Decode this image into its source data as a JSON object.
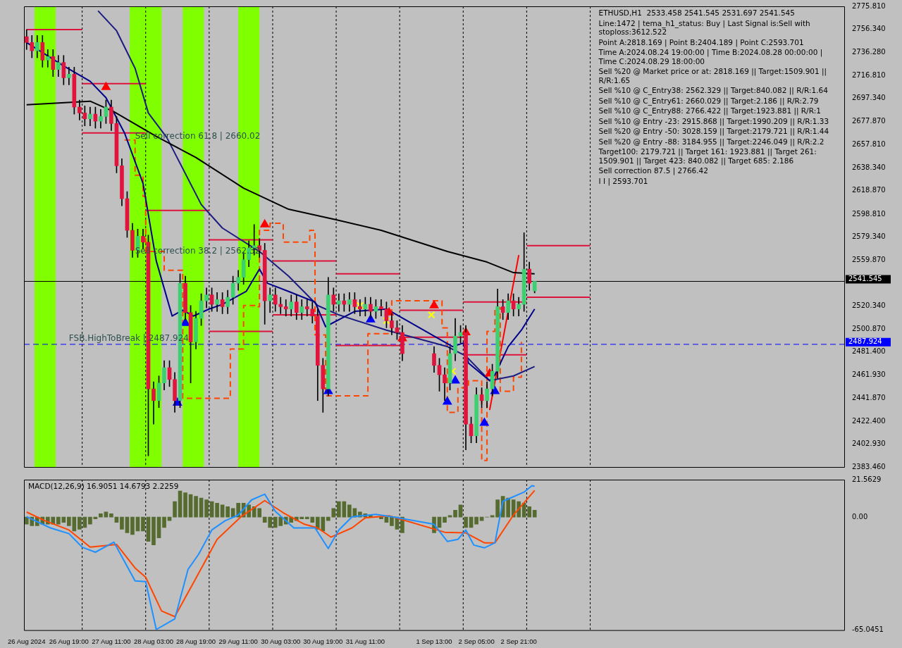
{
  "chart_data": [
    {
      "type": "candlestick",
      "title": "ETHUSD,H1  2533.458 2541.545 2531.697 2541.545",
      "legend": false,
      "grid": false,
      "tick_labels": "y",
      "xlim": [
        "2024-08-26T02:00",
        "2024-09-08T00:00"
      ],
      "ylim": [
        2383.46,
        2775.81
      ],
      "yticks": [
        {
          "value": 2383.46,
          "label": "2383.460"
        },
        {
          "value": 2402.93,
          "label": "2402.930"
        },
        {
          "value": 2422.4,
          "label": "2422.400"
        },
        {
          "value": 2441.87,
          "label": "2441.870"
        },
        {
          "value": 2461.93,
          "label": "2461.930"
        },
        {
          "value": 2481.4,
          "label": "2481.400"
        },
        {
          "value": 2500.87,
          "label": "2500.870"
        },
        {
          "value": 2520.34,
          "label": "2520.340"
        },
        {
          "value": 2559.87,
          "label": "2559.870"
        },
        {
          "value": 2579.34,
          "label": "2579.340"
        },
        {
          "value": 2598.81,
          "label": "2598.810"
        },
        {
          "value": 2618.87,
          "label": "2618.870"
        },
        {
          "value": 2638.34,
          "label": "2638.340"
        },
        {
          "value": 2657.81,
          "label": "2657.810"
        },
        {
          "value": 2677.87,
          "label": "2677.870"
        },
        {
          "value": 2697.34,
          "label": "2697.340"
        },
        {
          "value": 2716.81,
          "label": "2716.810"
        },
        {
          "value": 2736.28,
          "label": "2736.280"
        },
        {
          "value": 2756.34,
          "label": "2756.340"
        },
        {
          "value": 2775.81,
          "label": "2775.810"
        }
      ],
      "x": [
        "2024-08-26T03:00",
        "2024-08-26T05:00",
        "2024-08-26T07:00",
        "2024-08-26T09:00",
        "2024-08-26T11:00",
        "2024-08-26T13:00",
        "2024-08-26T15:00",
        "2024-08-26T17:00",
        "2024-08-26T19:00",
        "2024-08-26T21:00",
        "2024-08-26T23:00",
        "2024-08-27T01:00",
        "2024-08-27T03:00",
        "2024-08-27T05:00",
        "2024-08-27T07:00",
        "2024-08-27T09:00",
        "2024-08-27T11:00",
        "2024-08-27T13:00",
        "2024-08-27T15:00",
        "2024-08-27T17:00",
        "2024-08-27T19:00",
        "2024-08-27T21:00",
        "2024-08-27T23:00",
        "2024-08-28T01:00",
        "2024-08-28T03:00",
        "2024-08-28T05:00",
        "2024-08-28T07:00",
        "2024-08-28T09:00",
        "2024-08-28T11:00",
        "2024-08-28T13:00",
        "2024-08-28T15:00",
        "2024-08-28T17:00",
        "2024-08-28T19:00",
        "2024-08-28T21:00",
        "2024-08-28T23:00",
        "2024-08-29T01:00",
        "2024-08-29T03:00",
        "2024-08-29T05:00",
        "2024-08-29T07:00",
        "2024-08-29T09:00",
        "2024-08-29T11:00",
        "2024-08-29T13:00",
        "2024-08-29T15:00",
        "2024-08-29T17:00",
        "2024-08-29T19:00",
        "2024-08-29T21:00",
        "2024-08-29T23:00",
        "2024-08-30T01:00",
        "2024-08-30T03:00",
        "2024-08-30T05:00",
        "2024-08-30T07:00",
        "2024-08-30T09:00",
        "2024-08-30T11:00",
        "2024-08-30T13:00",
        "2024-08-30T15:00",
        "2024-08-30T17:00",
        "2024-08-30T19:00",
        "2024-08-30T21:00",
        "2024-08-30T23:00",
        "2024-08-31T01:00",
        "2024-08-31T03:00",
        "2024-08-31T05:00",
        "2024-08-31T07:00",
        "2024-08-31T09:00",
        "2024-08-31T11:00",
        "2024-08-31T13:00",
        "2024-08-31T15:00",
        "2024-08-31T17:00",
        "2024-08-31T19:00",
        "2024-08-31T21:00",
        "2024-08-31T23:00",
        "2024-09-01T01:00",
        "2024-09-01T13:00",
        "2024-09-01T15:00",
        "2024-09-01T17:00",
        "2024-09-01T19:00",
        "2024-09-01T21:00",
        "2024-09-01T23:00",
        "2024-09-02T01:00",
        "2024-09-02T03:00",
        "2024-09-02T05:00",
        "2024-09-02T07:00",
        "2024-09-02T09:00",
        "2024-09-02T11:00",
        "2024-09-02T13:00",
        "2024-09-02T15:00",
        "2024-09-02T17:00",
        "2024-09-02T19:00",
        "2024-09-02T21:00",
        "2024-09-02T23:00",
        "2024-09-03T01:00",
        "2024-09-03T03:00"
      ],
      "ohlc": [
        [
          2750,
          2756,
          2739,
          2745
        ],
        [
          2745,
          2751,
          2732,
          2738
        ],
        [
          2738,
          2751,
          2732,
          2745
        ],
        [
          2745,
          2751,
          2724,
          2730
        ],
        [
          2730,
          2739,
          2724,
          2733
        ],
        [
          2733,
          2739,
          2716,
          2722
        ],
        [
          2722,
          2734,
          2716,
          2728
        ],
        [
          2728,
          2734,
          2709,
          2715
        ],
        [
          2715,
          2724,
          2709,
          2718
        ],
        [
          2718,
          2724,
          2684,
          2690
        ],
        [
          2690,
          2696,
          2679,
          2685
        ],
        [
          2685,
          2691,
          2674,
          2680
        ],
        [
          2680,
          2690,
          2674,
          2684
        ],
        [
          2684,
          2690,
          2672,
          2678
        ],
        [
          2678,
          2688,
          2672,
          2682
        ],
        [
          2682,
          2696,
          2676,
          2690
        ],
        [
          2690,
          2696,
          2670,
          2676
        ],
        [
          2676,
          2682,
          2634,
          2640
        ],
        [
          2640,
          2646,
          2606,
          2612
        ],
        [
          2612,
          2618,
          2579,
          2585
        ],
        [
          2585,
          2591,
          2562,
          2568
        ],
        [
          2568,
          2586,
          2562,
          2580
        ],
        [
          2580,
          2586,
          2569,
          2575
        ],
        [
          2575,
          2581,
          2393,
          2450
        ],
        [
          2450,
          2456,
          2420,
          2440
        ],
        [
          2440,
          2461,
          2434,
          2455
        ],
        [
          2455,
          2474,
          2449,
          2468
        ],
        [
          2468,
          2474,
          2452,
          2458
        ],
        [
          2458,
          2464,
          2430,
          2440
        ],
        [
          2440,
          2548,
          2434,
          2540
        ],
        [
          2540,
          2546,
          2509,
          2515
        ],
        [
          2515,
          2521,
          2455,
          2490
        ],
        [
          2490,
          2516,
          2484,
          2510
        ],
        [
          2510,
          2531,
          2504,
          2525
        ],
        [
          2525,
          2536,
          2519,
          2530
        ],
        [
          2530,
          2536,
          2516,
          2522
        ],
        [
          2522,
          2532,
          2516,
          2526
        ],
        [
          2526,
          2532,
          2514,
          2520
        ],
        [
          2520,
          2534,
          2514,
          2528
        ],
        [
          2528,
          2546,
          2522,
          2540
        ],
        [
          2540,
          2551,
          2534,
          2545
        ],
        [
          2545,
          2566,
          2539,
          2560
        ],
        [
          2560,
          2576,
          2554,
          2570
        ],
        [
          2570,
          2590,
          2564,
          2572
        ],
        [
          2572,
          2578,
          2562,
          2568
        ],
        [
          2568,
          2574,
          2505,
          2525
        ],
        [
          2525,
          2536,
          2515,
          2530
        ],
        [
          2530,
          2536,
          2516,
          2522
        ],
        [
          2522,
          2528,
          2514,
          2520
        ],
        [
          2520,
          2526,
          2512,
          2518
        ],
        [
          2518,
          2530,
          2512,
          2524
        ],
        [
          2524,
          2530,
          2509,
          2515
        ],
        [
          2515,
          2526,
          2509,
          2520
        ],
        [
          2520,
          2526,
          2512,
          2518
        ],
        [
          2518,
          2524,
          2506,
          2512
        ],
        [
          2512,
          2518,
          2440,
          2470
        ],
        [
          2470,
          2476,
          2430,
          2450
        ],
        [
          2450,
          2545,
          2444,
          2530
        ],
        [
          2530,
          2536,
          2516,
          2522
        ],
        [
          2522,
          2531,
          2516,
          2525
        ],
        [
          2525,
          2531,
          2516,
          2522
        ],
        [
          2522,
          2532,
          2516,
          2526
        ],
        [
          2526,
          2532,
          2514,
          2520
        ],
        [
          2520,
          2526,
          2512,
          2518
        ],
        [
          2518,
          2528,
          2512,
          2522
        ],
        [
          2522,
          2528,
          2510,
          2516
        ],
        [
          2516,
          2526,
          2510,
          2520
        ],
        [
          2520,
          2526,
          2512,
          2518
        ],
        [
          2518,
          2524,
          2502,
          2508
        ],
        [
          2508,
          2514,
          2496,
          2502
        ],
        [
          2502,
          2508,
          2492,
          2498
        ],
        [
          2498,
          2504,
          2474,
          2480
        ],
        [
          2480,
          2486,
          2464,
          2470
        ],
        [
          2470,
          2476,
          2448,
          2462
        ],
        [
          2462,
          2468,
          2440,
          2455
        ],
        [
          2455,
          2486,
          2449,
          2480
        ],
        [
          2480,
          2510,
          2474,
          2495
        ],
        [
          2495,
          2504,
          2489,
          2498
        ],
        [
          2498,
          2504,
          2398,
          2420
        ],
        [
          2420,
          2426,
          2404,
          2410
        ],
        [
          2410,
          2451,
          2404,
          2445
        ],
        [
          2445,
          2451,
          2434,
          2440
        ],
        [
          2440,
          2456,
          2434,
          2450
        ],
        [
          2450,
          2471,
          2444,
          2465
        ],
        [
          2465,
          2535,
          2459,
          2520
        ],
        [
          2520,
          2526,
          2509,
          2515
        ],
        [
          2515,
          2531,
          2509,
          2525
        ],
        [
          2525,
          2531,
          2512,
          2518
        ],
        [
          2518,
          2528,
          2512,
          2522
        ],
        [
          2522,
          2583,
          2516,
          2552
        ],
        [
          2552,
          2558,
          2534,
          2540
        ],
        [
          2533.458,
          2541.545,
          2531.697,
          2541.545
        ]
      ],
      "colors": [
        "#e0143c",
        "#e0143c",
        "#3cd070",
        "#e0143c",
        "#3cd070",
        "#e0143c",
        "#3cd070",
        "#e0143c",
        "#3cd070",
        "#e0143c",
        "#e0143c",
        "#e0143c",
        "#3cd070",
        "#e0143c",
        "#3cd070",
        "#3cd070",
        "#e0143c",
        "#e0143c",
        "#e0143c",
        "#e0143c",
        "#e0143c",
        "#3cd070",
        "#e0143c",
        "#e0143c",
        "#e0143c",
        "#3cd070",
        "#3cd070",
        "#e0143c",
        "#e0143c",
        "#3cd070",
        "#e0143c",
        "#e0143c",
        "#3cd070",
        "#3cd070",
        "#3cd070",
        "#e0143c",
        "#3cd070",
        "#e0143c",
        "#3cd070",
        "#3cd070",
        "#3cd070",
        "#3cd070",
        "#3cd070",
        "#3cd070",
        "#e0143c",
        "#e0143c",
        "#3cd070",
        "#e0143c",
        "#e0143c",
        "#e0143c",
        "#3cd070",
        "#e0143c",
        "#3cd070",
        "#e0143c",
        "#e0143c",
        "#e0143c",
        "#e0143c",
        "#3cd070",
        "#e0143c",
        "#3cd070",
        "#e0143c",
        "#3cd070",
        "#e0143c",
        "#e0143c",
        "#3cd070",
        "#e0143c",
        "#3cd070",
        "#e0143c",
        "#e0143c",
        "#e0143c",
        "#e0143c",
        "#e0143c",
        "#e0143c",
        "#e0143c",
        "#e0143c",
        "#3cd070",
        "#3cd070",
        "#3cd070",
        "#e0143c",
        "#e0143c",
        "#3cd070",
        "#e0143c",
        "#3cd070",
        "#3cd070",
        "#3cd070",
        "#e0143c",
        "#3cd070",
        "#e0143c",
        "#3cd070",
        "#3cd070",
        "#e0143c",
        "#3cd070"
      ],
      "series": [
        {
          "type": "line",
          "color": "#000000",
          "x": [
            "2024-08-26T03:00",
            "2024-08-27T03:00",
            "2024-08-27T12:00",
            "2024-08-28T04:00",
            "2024-08-28T19:00",
            "2024-08-29T13:00",
            "2024-08-30T06:00",
            "2024-08-31T00:00",
            "2024-08-31T17:00",
            "2024-09-01T18:00",
            "2024-09-02T09:00",
            "2024-09-02T19:00",
            "2024-09-03T03:00"
          ],
          "values": [
            2692,
            2695,
            2686,
            2665,
            2647,
            2621,
            2603,
            2594,
            2585,
            2567,
            2558,
            2549,
            2548
          ]
        },
        {
          "type": "line",
          "color": "#00008b",
          "x": [
            "2024-08-26T03:00",
            "2024-08-26T17:00",
            "2024-08-27T03:00",
            "2024-08-27T09:00",
            "2024-08-27T16:00",
            "2024-08-27T23:00",
            "2024-08-28T04:00",
            "2024-08-28T10:00",
            "2024-08-28T14:00",
            "2024-08-28T18:00",
            "2024-08-29T00:00",
            "2024-08-29T05:00",
            "2024-08-29T14:00",
            "2024-08-29T19:00",
            "2024-08-29T22:00",
            "2024-08-30T06:00",
            "2024-08-30T16:00",
            "2024-08-30T20:00",
            "2024-08-31T07:00",
            "2024-08-31T19:00",
            "2024-09-01T20:00",
            "2024-09-02T00:00",
            "2024-09-02T02:00",
            "2024-09-02T10:00",
            "2024-09-02T12:00",
            "2024-09-02T17:00",
            "2024-09-02T22:00",
            "2024-09-03T03:00"
          ],
          "values": [
            2745,
            2725,
            2712,
            2698,
            2668,
            2625,
            2559,
            2512,
            2517,
            2512,
            2518,
            2522,
            2533,
            2552,
            2540,
            2533,
            2524,
            2503,
            2516,
            2518,
            2486,
            2489,
            2472,
            2457,
            2462,
            2486,
            2500,
            2518
          ]
        },
        {
          "type": "line",
          "color": "#1c1c80",
          "x": [
            "2024-08-27T06:00",
            "2024-08-27T13:00",
            "2024-08-27T20:00",
            "2024-08-28T01:00",
            "2024-08-28T08:00",
            "2024-08-28T21:00",
            "2024-08-29T05:00",
            "2024-08-29T19:00",
            "2024-08-30T06:00",
            "2024-08-30T17:00",
            "2024-08-31T01:00",
            "2024-08-31T19:00",
            "2024-09-01T18:00",
            "2024-09-02T01:00",
            "2024-09-02T10:00",
            "2024-09-02T19:00",
            "2024-09-03T03:00"
          ],
          "values": [
            2772,
            2755,
            2723,
            2685,
            2664,
            2607,
            2587,
            2567,
            2546,
            2521,
            2513,
            2500,
            2486,
            2478,
            2457,
            2461,
            2469
          ]
        },
        {
          "type": "step",
          "color": "#ff4500",
          "line_style": "dashed",
          "x": [
            "2024-08-27T16:00",
            "2024-08-27T20:00",
            "2024-08-27T23:00",
            "2024-08-28T00:00",
            "2024-08-28T07:00",
            "2024-08-28T13:00",
            "2024-08-28T14:00",
            "2024-08-29T05:00",
            "2024-08-29T08:00",
            "2024-08-29T13:00",
            "2024-08-29T18:00",
            "2024-08-29T19:00",
            "2024-08-29T23:00",
            "2024-08-30T04:00",
            "2024-08-30T09:00",
            "2024-08-30T14:00",
            "2024-08-30T16:00",
            "2024-08-30T20:00",
            "2024-08-31T05:00",
            "2024-08-31T12:00",
            "2024-08-31T20:00",
            "2024-08-31T21:00",
            "2024-09-01T01:00",
            "2024-09-01T16:00",
            "2024-09-01T18:00",
            "2024-09-01T22:00",
            "2024-09-02T02:00",
            "2024-09-02T07:00",
            "2024-09-02T09:00",
            "2024-09-02T12:00",
            "2024-09-02T14:00",
            "2024-09-02T19:00",
            "2024-09-02T22:00"
          ],
          "values": [
            2662,
            2632,
            2614,
            2567,
            2551,
            2551,
            2442,
            2442,
            2484,
            2521,
            2520,
            2585,
            2591,
            2575,
            2575,
            2585,
            2496,
            2444,
            2444,
            2497,
            2498,
            2525,
            2525,
            2502,
            2430,
            2451,
            2457,
            2389,
            2499,
            2519,
            2448,
            2460,
            2490
          ]
        },
        {
          "type": "line",
          "color": "#dc143c",
          "x": [
            "2024-08-26T03:00",
            "2024-08-27T00:00"
          ],
          "values": [
            2756,
            2756
          ]
        },
        {
          "type": "line",
          "color": "#dc143c",
          "x": [
            "2024-08-27T00:00",
            "2024-08-28T00:00"
          ],
          "values": [
            2668,
            2668
          ]
        },
        {
          "type": "line",
          "color": "#dc143c",
          "x": [
            "2024-08-27T00:00",
            "2024-08-28T00:00"
          ],
          "values": [
            2710,
            2710
          ]
        },
        {
          "type": "line",
          "color": "#dc143c",
          "x": [
            "2024-08-28T00:00",
            "2024-08-29T00:00"
          ],
          "values": [
            2602,
            2602
          ]
        },
        {
          "type": "line",
          "color": "#dc143c",
          "x": [
            "2024-08-29T00:00",
            "2024-08-30T00:00"
          ],
          "values": [
            2577,
            2577
          ]
        },
        {
          "type": "line",
          "color": "#dc143c",
          "x": [
            "2024-08-29T00:00",
            "2024-08-30T00:00"
          ],
          "values": [
            2499,
            2499
          ]
        },
        {
          "type": "line",
          "color": "#dc143c",
          "x": [
            "2024-08-30T00:00",
            "2024-08-31T00:00"
          ],
          "values": [
            2559,
            2559
          ]
        },
        {
          "type": "line",
          "color": "#dc143c",
          "x": [
            "2024-08-30T00:00",
            "2024-08-31T00:00"
          ],
          "values": [
            2513,
            2513
          ]
        },
        {
          "type": "line",
          "color": "#dc143c",
          "x": [
            "2024-08-31T00:00",
            "2024-09-01T00:00"
          ],
          "values": [
            2548,
            2548
          ]
        },
        {
          "type": "line",
          "color": "#dc143c",
          "x": [
            "2024-08-31T00:00",
            "2024-09-01T00:00"
          ],
          "values": [
            2487,
            2487
          ]
        },
        {
          "type": "line",
          "color": "#dc143c",
          "x": [
            "2024-09-01T00:00",
            "2024-09-02T00:00"
          ],
          "values": [
            2517,
            2517
          ]
        },
        {
          "type": "line",
          "color": "#dc143c",
          "x": [
            "2024-09-01T00:00",
            "2024-09-02T00:00"
          ],
          "values": [
            2494,
            2494
          ]
        },
        {
          "type": "line",
          "color": "#dc143c",
          "x": [
            "2024-09-02T00:00",
            "2024-09-03T00:00"
          ],
          "values": [
            2524,
            2524
          ]
        },
        {
          "type": "line",
          "color": "#dc143c",
          "x": [
            "2024-09-02T00:00",
            "2024-09-03T00:00"
          ],
          "values": [
            2479,
            2479
          ]
        },
        {
          "type": "line",
          "color": "#dc143c",
          "x": [
            "2024-09-03T00:00",
            "2024-09-04T00:00"
          ],
          "values": [
            2572,
            2572
          ]
        },
        {
          "type": "line",
          "color": "#dc143c",
          "x": [
            "2024-09-03T00:00",
            "2024-09-04T00:00"
          ],
          "values": [
            2528,
            2528
          ]
        },
        {
          "type": "line",
          "color": "#ff0000",
          "x": [
            "2024-09-02T10:00",
            "2024-09-02T21:00"
          ],
          "values": [
            2432,
            2564
          ]
        },
        {
          "type": "scatter",
          "marker": "triangle",
          "color": "#0000ff",
          "x": [
            "2024-08-28T12:00",
            "2024-08-28T15:00",
            "2024-08-30T21:00",
            "2024-08-31T13:00",
            "2024-09-01T18:00",
            "2024-09-01T21:00",
            "2024-09-02T08:00",
            "2024-09-02T12:00"
          ],
          "values": [
            2438,
            2506,
            2448,
            2509,
            2439,
            2457,
            2421,
            2448
          ]
        },
        {
          "type": "scatter",
          "marker": "triangle",
          "color": "#ff0000",
          "x": [
            "2024-08-27T09:00",
            "2024-08-29T21:00",
            "2024-08-31T20:00",
            "2024-09-01T01:00",
            "2024-09-01T13:00",
            "2024-09-02T01:00",
            "2024-09-02T10:00"
          ],
          "values": [
            2707,
            2590,
            2515,
            2493,
            2521,
            2498,
            2463
          ]
        },
        {
          "type": "scatter",
          "marker": "cross",
          "color": "#ffff00",
          "x": [
            "2024-08-31T09:00",
            "2024-08-31T19:00",
            "2024-09-01T12:00",
            "2024-09-01T20:00"
          ],
          "values": [
            2521,
            2508,
            2513,
            2465
          ]
        }
      ],
      "bands": [
        {
          "axis": "x",
          "from": "2024-08-26T06:00",
          "to": "2024-08-26T14:00",
          "color": "#7fff00"
        },
        {
          "axis": "x",
          "from": "2024-08-27T18:00",
          "to": "2024-08-28T06:00",
          "color": "#7fff00"
        },
        {
          "axis": "x",
          "from": "2024-08-28T14:00",
          "to": "2024-08-28T22:00",
          "color": "#7fff00"
        },
        {
          "axis": "x",
          "from": "2024-08-29T11:00",
          "to": "2024-08-29T19:00",
          "color": "#7fff00"
        }
      ],
      "ref_lines": [
        {
          "axis": "y",
          "value": 2541.545,
          "label": "2541.545",
          "color": "#000000"
        },
        {
          "axis": "y",
          "value": 2487.924,
          "label": "2487.924",
          "color": "#0000ff",
          "line_style": "dashed"
        },
        {
          "axis": "x",
          "value": "2024-08-27T00:00",
          "color": "#000000",
          "line_style": "dotted"
        },
        {
          "axis": "x",
          "value": "2024-08-28T00:00",
          "color": "#000000",
          "line_style": "dotted"
        },
        {
          "axis": "x",
          "value": "2024-08-29T00:00",
          "color": "#000000",
          "line_style": "dotted"
        },
        {
          "axis": "x",
          "value": "2024-08-30T00:00",
          "color": "#000000",
          "line_style": "dotted"
        },
        {
          "axis": "x",
          "value": "2024-08-31T00:00",
          "color": "#000000",
          "line_style": "dotted"
        },
        {
          "axis": "x",
          "value": "2024-09-01T00:00",
          "color": "#000000",
          "line_style": "dotted"
        },
        {
          "axis": "x",
          "value": "2024-09-02T00:00",
          "color": "#000000",
          "line_style": "dotted"
        },
        {
          "axis": "x",
          "value": "2024-09-03T00:00",
          "color": "#000000",
          "line_style": "dotted"
        },
        {
          "axis": "x",
          "value": "2024-09-04T00:00",
          "color": "#000000",
          "line_style": "dotted"
        }
      ],
      "annotations": [
        "Line:1472 | tema_h1_status: Buy | Last Signal is:Sell with stoploss:3612.522",
        "Point A:2818.169 | Point B:2404.189 | Point C:2593.701",
        "Time A:2024.08.24 19:00:00 | Time B:2024.08.28 00:00:00 | Time C:2024.08.29 18:00:00",
        "Sell %20 @ Market price or at: 2818.169 || Target:1509.901 || R/R:1.65",
        "Sell %10 @ C_Entry38: 2562.329 || Target:840.082 || R/R:1.64",
        "Sell %10 @ C_Entry61: 2660.029 || Target:2.186 || R/R:2.79",
        "Sell %10 @ C_Entry88: 2766.422 || Target:1923.881 || R/R:1",
        "Sell %10 @ Entry -23: 2915.868 || Target:1990.209 || R/R:1.33",
        "Sell %20 @ Entry -50: 3028.159 || Target:2179.721 || R/R:1.44",
        "Sell %20 @ Entry -88: 3184.955 || Target:2246.049 || R/R:2.2",
        "Target100: 2179.721 || Target 161: 1923.881 || Target 261: 1509.901 || Target 423: 840.082 || Target 685: 2.186",
        "Sell correction 87.5 | 2766.42",
        "I I | 2593.701",
        {
          "text": "Sell correction 61.8 | 2660.02",
          "x": "2024-08-27T20:00",
          "y": 2660.02
        },
        {
          "text": "Sell correction 38.2 | 2562.32",
          "x": "2024-08-27T20:00",
          "y": 2562.32
        },
        {
          "text": "FSB.HighToBreak | 2487.924",
          "x": "2024-08-26T19:00",
          "y": 2487.924
        }
      ]
    },
    {
      "type": "bar",
      "title": "MACD(12,26,9) 16.9051 14.6793 2.2259",
      "legend": false,
      "grid": false,
      "xlim": [
        "2024-08-26T02:00",
        "2024-09-08T00:00"
      ],
      "ylim": [
        -65.0451,
        21.5629
      ],
      "yticks": [
        {
          "value": -65.0451,
          "label": "-65.0451"
        },
        {
          "value": 0,
          "label": "0.00"
        },
        {
          "value": 21.5629,
          "label": "21.5629"
        }
      ],
      "xticks": [
        {
          "value": "2024-08-26T03:00",
          "label": "26 Aug 2024"
        },
        {
          "value": "2024-08-26T19:00",
          "label": "26 Aug 19:00"
        },
        {
          "value": "2024-08-27T11:00",
          "label": "27 Aug 11:00"
        },
        {
          "value": "2024-08-28T03:00",
          "label": "28 Aug 03:00"
        },
        {
          "value": "2024-08-28T19:00",
          "label": "28 Aug 19:00"
        },
        {
          "value": "2024-08-29T11:00",
          "label": "29 Aug 11:00"
        },
        {
          "value": "2024-08-30T03:00",
          "label": "30 Aug 03:00"
        },
        {
          "value": "2024-08-30T19:00",
          "label": "30 Aug 19:00"
        },
        {
          "value": "2024-08-31T11:00",
          "label": "31 Aug 11:00"
        },
        {
          "value": "2024-09-01T13:00",
          "label": "1 Sep 13:00"
        },
        {
          "value": "2024-09-02T05:00",
          "label": "2 Sep 05:00"
        },
        {
          "value": "2024-09-02T21:00",
          "label": "2 Sep 21:00"
        }
      ],
      "x": [
        "2024-08-26T03:00",
        "2024-08-26T05:00",
        "2024-08-26T07:00",
        "2024-08-26T09:00",
        "2024-08-26T11:00",
        "2024-08-26T13:00",
        "2024-08-26T15:00",
        "2024-08-26T17:00",
        "2024-08-26T19:00",
        "2024-08-26T21:00",
        "2024-08-26T23:00",
        "2024-08-27T01:00",
        "2024-08-27T03:00",
        "2024-08-27T05:00",
        "2024-08-27T07:00",
        "2024-08-27T09:00",
        "2024-08-27T11:00",
        "2024-08-27T13:00",
        "2024-08-27T15:00",
        "2024-08-27T17:00",
        "2024-08-27T19:00",
        "2024-08-27T21:00",
        "2024-08-27T23:00",
        "2024-08-28T01:00",
        "2024-08-28T03:00",
        "2024-08-28T05:00",
        "2024-08-28T07:00",
        "2024-08-28T09:00",
        "2024-08-28T11:00",
        "2024-08-28T13:00",
        "2024-08-28T15:00",
        "2024-08-28T17:00",
        "2024-08-28T19:00",
        "2024-08-28T21:00",
        "2024-08-28T23:00",
        "2024-08-29T01:00",
        "2024-08-29T03:00",
        "2024-08-29T05:00",
        "2024-08-29T07:00",
        "2024-08-29T09:00",
        "2024-08-29T11:00",
        "2024-08-29T13:00",
        "2024-08-29T15:00",
        "2024-08-29T17:00",
        "2024-08-29T19:00",
        "2024-08-29T21:00",
        "2024-08-29T23:00",
        "2024-08-30T01:00",
        "2024-08-30T03:00",
        "2024-08-30T05:00",
        "2024-08-30T07:00",
        "2024-08-30T09:00",
        "2024-08-30T11:00",
        "2024-08-30T13:00",
        "2024-08-30T15:00",
        "2024-08-30T17:00",
        "2024-08-30T19:00",
        "2024-08-30T21:00",
        "2024-08-30T23:00",
        "2024-08-31T01:00",
        "2024-08-31T03:00",
        "2024-08-31T05:00",
        "2024-08-31T07:00",
        "2024-08-31T09:00",
        "2024-08-31T11:00",
        "2024-08-31T13:00",
        "2024-08-31T15:00",
        "2024-08-31T17:00",
        "2024-08-31T19:00",
        "2024-08-31T21:00",
        "2024-08-31T23:00",
        "2024-09-01T01:00",
        "2024-09-01T13:00",
        "2024-09-01T15:00",
        "2024-09-01T17:00",
        "2024-09-01T19:00",
        "2024-09-01T21:00",
        "2024-09-01T23:00",
        "2024-09-02T01:00",
        "2024-09-02T03:00",
        "2024-09-02T05:00",
        "2024-09-02T07:00",
        "2024-09-02T09:00",
        "2024-09-02T11:00",
        "2024-09-02T13:00",
        "2024-09-02T15:00",
        "2024-09-02T17:00",
        "2024-09-02T19:00",
        "2024-09-02T21:00",
        "2024-09-02T23:00",
        "2024-09-03T01:00",
        "2024-09-03T03:00"
      ],
      "values": [
        -4,
        -5,
        -5,
        -4,
        -4,
        -4,
        -4,
        -3,
        -5,
        -8,
        -7,
        -6,
        -4,
        -1,
        2,
        3,
        2,
        -3,
        -7,
        -9,
        -10,
        -8,
        -8,
        -14,
        -16,
        -12,
        -6,
        -2,
        9,
        15,
        14,
        13,
        12,
        11,
        10,
        9,
        8,
        7,
        6,
        5,
        8,
        8,
        7,
        6,
        5,
        -3,
        -6,
        -6,
        -5,
        -4,
        -3,
        -2,
        -1,
        -1,
        -3,
        -7,
        -8,
        -2,
        5,
        9,
        9,
        7,
        5,
        3,
        2,
        1,
        0,
        -1,
        -3,
        -5,
        -7,
        -9,
        -9,
        -6,
        -3,
        1,
        4,
        7,
        -6,
        -6,
        -4,
        -2,
        0,
        1,
        10,
        12,
        11,
        10,
        9,
        8,
        6,
        4
      ],
      "color": "#556b2f",
      "series": [
        {
          "type": "line",
          "color": "#1e90ff",
          "x": [
            "2024-08-26T03:00",
            "2024-08-26T12:00",
            "2024-08-26T19:00",
            "2024-08-27T00:00",
            "2024-08-27T05:00",
            "2024-08-27T12:00",
            "2024-08-27T20:00",
            "2024-08-28T00:00",
            "2024-08-28T04:00",
            "2024-08-28T11:00",
            "2024-08-28T16:00",
            "2024-08-28T20:00",
            "2024-08-29T01:00",
            "2024-08-29T06:00",
            "2024-08-29T11:00",
            "2024-08-29T16:00",
            "2024-08-29T21:00",
            "2024-08-30T01:00",
            "2024-08-30T08:00",
            "2024-08-30T16:00",
            "2024-08-30T21:00",
            "2024-08-31T01:00",
            "2024-08-31T06:00",
            "2024-08-31T15:00",
            "2024-08-31T22:00",
            "2024-09-01T13:00",
            "2024-09-01T18:00",
            "2024-09-01T22:00",
            "2024-09-02T01:00",
            "2024-09-02T04:00",
            "2024-09-02T08:00",
            "2024-09-02T12:00",
            "2024-09-02T15:00",
            "2024-09-02T23:00",
            "2024-09-03T02:00",
            "2024-09-03T03:00"
          ],
          "values": [
            0.2,
            -6.2,
            -9.5,
            -17.3,
            -20.2,
            -14.4,
            -36.7,
            -37.1,
            -64.7,
            -58.6,
            -30.1,
            -21.4,
            -7.4,
            -2.1,
            1.2,
            9.9,
            13.2,
            3.3,
            -6.2,
            -6.2,
            -18.1,
            -7.4,
            0.2,
            1.6,
            0,
            -4.1,
            -14,
            -12.8,
            -7.4,
            -16.1,
            -17.7,
            -14.8,
            9.1,
            14.4,
            18.1,
            17.7
          ]
        },
        {
          "type": "line",
          "color": "#ff4500",
          "x": [
            "2024-08-26T03:00",
            "2024-08-26T10:00",
            "2024-08-26T19:00",
            "2024-08-27T03:00",
            "2024-08-27T13:00",
            "2024-08-27T20:00",
            "2024-08-28T00:00",
            "2024-08-28T06:00",
            "2024-08-28T11:00",
            "2024-08-28T18:00",
            "2024-08-29T03:00",
            "2024-08-29T12:00",
            "2024-08-29T21:00",
            "2024-08-30T04:00",
            "2024-08-30T12:00",
            "2024-08-30T17:00",
            "2024-08-30T22:00",
            "2024-08-31T06:00",
            "2024-08-31T11:00",
            "2024-08-31T20:00",
            "2024-09-01T17:00",
            "2024-09-02T01:00",
            "2024-09-02T08:00",
            "2024-09-02T12:00",
            "2024-09-02T19:00",
            "2024-09-03T03:00"
          ],
          "values": [
            2.9,
            -2.1,
            -7.4,
            -17.3,
            -15.7,
            -29.3,
            -34.6,
            -54,
            -57.3,
            -37.9,
            -12.8,
            0.2,
            9.5,
            2.5,
            -4.1,
            -6.2,
            -11.5,
            -6.2,
            -0.4,
            0.8,
            -8.7,
            -9.1,
            -14.8,
            -14.8,
            1.2,
            15.3
          ]
        }
      ],
      "ref_lines": [
        {
          "axis": "x",
          "value": "2024-08-27T00:00",
          "color": "#000000",
          "line_style": "dotted"
        },
        {
          "axis": "x",
          "value": "2024-08-28T00:00",
          "color": "#000000",
          "line_style": "dotted"
        },
        {
          "axis": "x",
          "value": "2024-08-29T00:00",
          "color": "#000000",
          "line_style": "dotted"
        },
        {
          "axis": "x",
          "value": "2024-08-30T00:00",
          "color": "#000000",
          "line_style": "dotted"
        },
        {
          "axis": "x",
          "value": "2024-08-31T00:00",
          "color": "#000000",
          "line_style": "dotted"
        },
        {
          "axis": "x",
          "value": "2024-09-01T00:00",
          "color": "#000000",
          "line_style": "dotted"
        },
        {
          "axis": "x",
          "value": "2024-09-02T00:00",
          "color": "#000000",
          "line_style": "dotted"
        },
        {
          "axis": "x",
          "value": "2024-09-03T00:00",
          "color": "#000000",
          "line_style": "dotted"
        },
        {
          "axis": "x",
          "value": "2024-09-04T00:00",
          "color": "#000000",
          "line_style": "dotted"
        }
      ]
    }
  ]
}
